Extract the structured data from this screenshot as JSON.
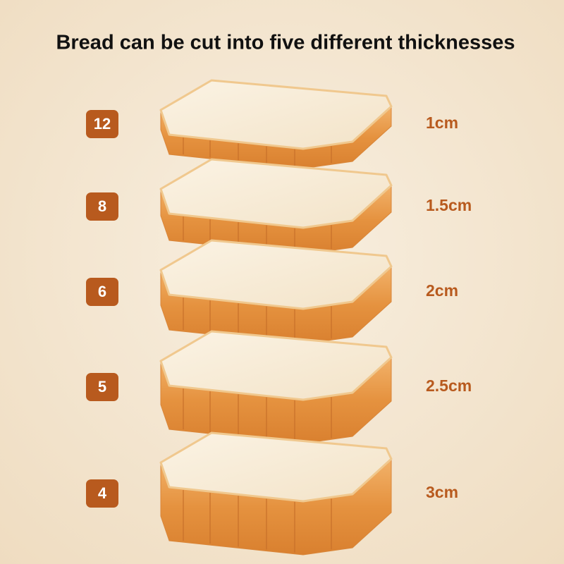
{
  "header": {
    "title": "Bread can be cut into five different thicknesses"
  },
  "rows": [
    {
      "badge": "12",
      "thickness": "1cm"
    },
    {
      "badge": "8",
      "thickness": "1.5cm"
    },
    {
      "badge": "6",
      "thickness": "2cm"
    },
    {
      "badge": "5",
      "thickness": "2.5cm"
    },
    {
      "badge": "4",
      "thickness": "3cm"
    }
  ]
}
